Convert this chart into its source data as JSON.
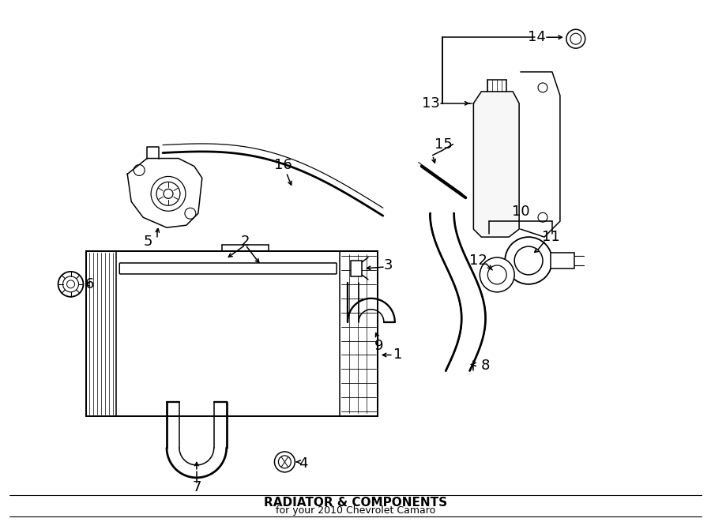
{
  "title": "RADIATOR & COMPONENTS",
  "subtitle": "for your 2010 Chevrolet Camaro",
  "bg_color": "#ffffff",
  "line_color": "#000000",
  "fig_width": 9.0,
  "fig_height": 6.61,
  "dpi": 100,
  "lw": 1.1
}
